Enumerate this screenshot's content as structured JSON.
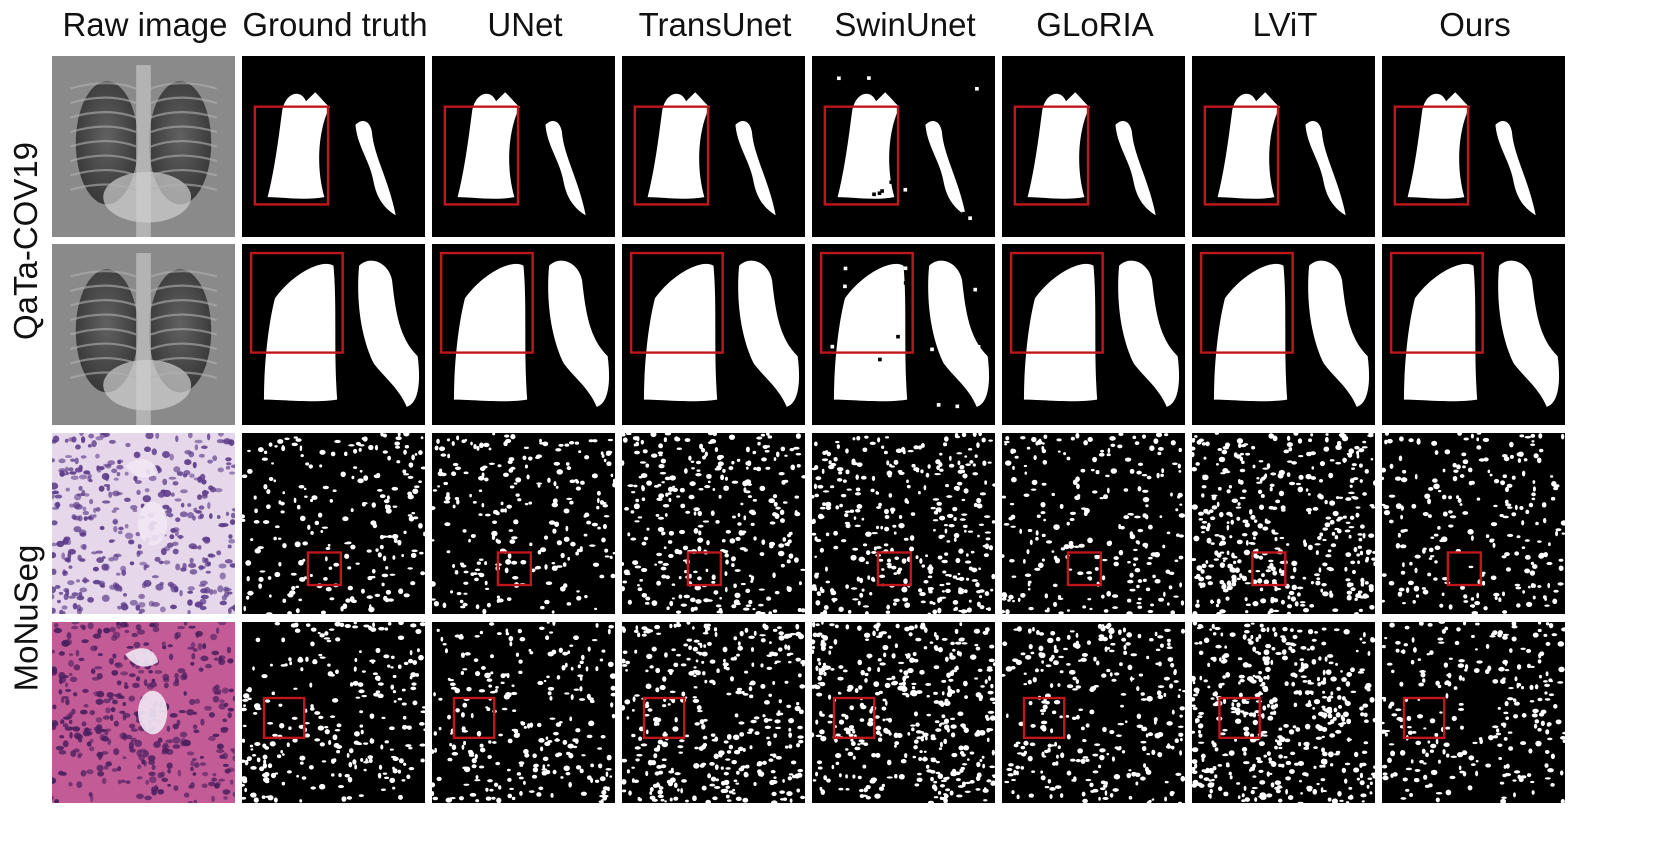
{
  "columns": [
    "Raw image",
    "Ground truth",
    "UNet",
    "TransUnet",
    "SwinUnet",
    "GLoRIA",
    "LViT",
    "Ours"
  ],
  "rows": [
    "QaTa-COV19",
    "MoNuSeg"
  ],
  "colors": {
    "highlight_box": "#c0171c",
    "mask_fg": "#ffffff",
    "mask_bg": "#000000"
  },
  "images": [
    {
      "dataset": "QaTa-COV19",
      "type": "chest-xray",
      "index": 1
    },
    {
      "dataset": "QaTa-COV19",
      "type": "chest-xray",
      "index": 2
    },
    {
      "dataset": "MoNuSeg",
      "type": "histology-he",
      "index": 1
    },
    {
      "dataset": "MoNuSeg",
      "type": "histology-he",
      "index": 2
    }
  ]
}
